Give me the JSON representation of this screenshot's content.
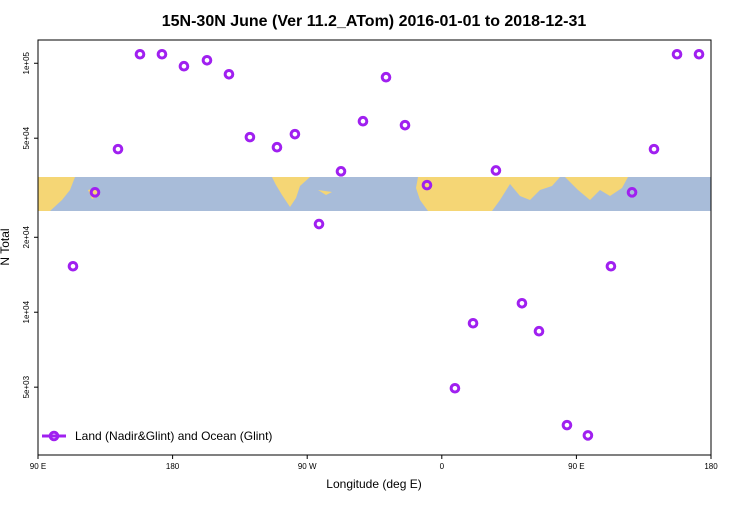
{
  "chart_data": {
    "type": "scatter",
    "title": "15N-30N June (Ver 11.2_ATom)   2016-01-01 to 2018-12-31",
    "xlabel": "Longitude (deg E)",
    "ylabel": "N Total",
    "yscale": "log",
    "legend": "lower left",
    "xlim": [
      90,
      540
    ],
    "xticks": [
      {
        "value": 90,
        "label": "90 E"
      },
      180,
      {
        "value": 270,
        "label": "90 W"
      },
      {
        "value": 360,
        "label": "0"
      },
      {
        "value": 450,
        "label": "90 E"
      },
      {
        "value": 540,
        "label": "180"
      }
    ],
    "ylim": [
      2670,
      124000
    ],
    "yticks": [
      {
        "value": 5000,
        "label": "5e+03"
      },
      {
        "value": 10000,
        "label": "1e+04"
      },
      {
        "value": 20000,
        "label": "2e+04"
      },
      {
        "value": 50000,
        "label": "5e+04"
      },
      {
        "value": 100000,
        "label": "1e+05"
      }
    ],
    "series": [
      {
        "name": "Land (Nadir&Glint) and Ocean (Glint)",
        "color": "#a020f0",
        "x": [
          113.4,
          128.1,
          143.5,
          158.2,
          172.9,
          187.6,
          203,
          217.7,
          231.7,
          249.8,
          261.8,
          277.9,
          292.6,
          307.3,
          322.7,
          335.4,
          350.1,
          368.8,
          380.9,
          396.2,
          413.6,
          425,
          443.7,
          457.7,
          473.1,
          487.2,
          501.9,
          517.3,
          532
        ],
        "values": [
          15300,
          30300,
          45200,
          108700,
          108700,
          97300,
          102800,
          90300,
          50500,
          46000,
          51900,
          22600,
          36800,
          58500,
          87900,
          56400,
          32400,
          4950,
          9030,
          37100,
          10860,
          8390,
          3520,
          3200,
          15300,
          30300,
          45200,
          108700,
          108700
        ]
      }
    ]
  }
}
